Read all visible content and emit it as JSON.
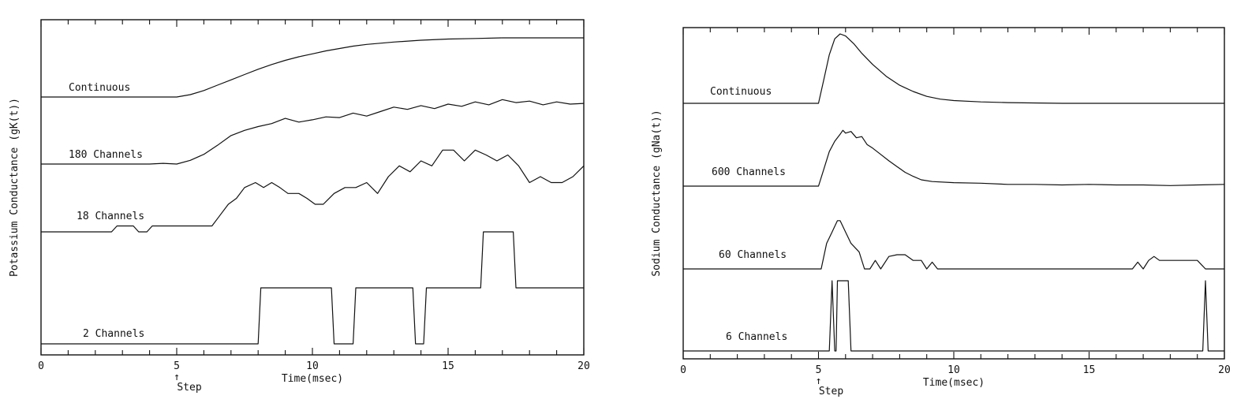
{
  "chart_data": [
    {
      "type": "line",
      "title": "",
      "xlabel": "Time(msec)",
      "ylabel": "Potassium Conductance (gK(t))",
      "xlim": [
        0,
        20
      ],
      "x_ticks": [
        "0",
        "5",
        "10",
        "15",
        "20"
      ],
      "annotation": {
        "arrow": "↑",
        "text": "Step",
        "x": 5
      },
      "traces": [
        {
          "name": "Continuous",
          "x": [
            0,
            5,
            5.5,
            6,
            6.5,
            7,
            7.5,
            8,
            8.5,
            9,
            9.5,
            10,
            10.5,
            11,
            11.5,
            12,
            12.5,
            13,
            14,
            15,
            16,
            17,
            18,
            19,
            20
          ],
          "y": [
            0.0,
            0.0,
            0.04,
            0.11,
            0.2,
            0.29,
            0.38,
            0.47,
            0.55,
            0.62,
            0.68,
            0.73,
            0.78,
            0.82,
            0.86,
            0.89,
            0.91,
            0.93,
            0.96,
            0.98,
            0.99,
            1.0,
            1.0,
            1.0,
            1.0
          ]
        },
        {
          "name": "180 Channels",
          "x": [
            0,
            4,
            4.5,
            5,
            5.5,
            6,
            6.5,
            7,
            7.5,
            8,
            8.5,
            9,
            9.5,
            10,
            10.5,
            11,
            11.5,
            12,
            12.5,
            13,
            13.5,
            14,
            14.5,
            15,
            15.5,
            16,
            16.5,
            17,
            17.5,
            18,
            18.5,
            19,
            19.5,
            20
          ],
          "y": [
            0.0,
            0.0,
            0.01,
            0.0,
            0.05,
            0.13,
            0.25,
            0.38,
            0.45,
            0.5,
            0.54,
            0.61,
            0.56,
            0.59,
            0.63,
            0.62,
            0.68,
            0.64,
            0.7,
            0.76,
            0.73,
            0.78,
            0.74,
            0.8,
            0.77,
            0.83,
            0.79,
            0.86,
            0.82,
            0.84,
            0.79,
            0.83,
            0.8,
            0.81
          ]
        },
        {
          "name": "18 Channels",
          "x": [
            0,
            2.6,
            2.8,
            3.4,
            3.6,
            3.9,
            4.1,
            6.3,
            6.6,
            6.9,
            7.2,
            7.5,
            7.9,
            8.2,
            8.5,
            8.8,
            9.1,
            9.5,
            9.8,
            10.1,
            10.4,
            10.8,
            11.2,
            11.6,
            12.0,
            12.4,
            12.8,
            13.2,
            13.6,
            14.0,
            14.4,
            14.8,
            15.2,
            15.6,
            16.0,
            16.4,
            16.8,
            17.2,
            17.6,
            18.0,
            18.4,
            18.8,
            19.2,
            19.6,
            20
          ],
          "y": [
            0.0,
            0.0,
            0.06,
            0.06,
            0.0,
            0.0,
            0.06,
            0.06,
            0.17,
            0.28,
            0.34,
            0.45,
            0.5,
            0.45,
            0.5,
            0.45,
            0.39,
            0.39,
            0.34,
            0.28,
            0.28,
            0.39,
            0.45,
            0.45,
            0.5,
            0.39,
            0.56,
            0.67,
            0.61,
            0.72,
            0.67,
            0.83,
            0.83,
            0.72,
            0.83,
            0.78,
            0.72,
            0.78,
            0.67,
            0.5,
            0.56,
            0.5,
            0.5,
            0.56,
            0.67
          ]
        },
        {
          "name": "2 Channels",
          "x": [
            0,
            8.0,
            8.1,
            10.7,
            10.8,
            11.5,
            11.6,
            13.7,
            13.8,
            14.1,
            14.2,
            16.2,
            16.3,
            17.4,
            17.5,
            20
          ],
          "y": [
            0,
            0,
            1,
            1,
            0,
            0,
            1,
            1,
            0,
            0,
            1,
            1,
            2,
            2,
            1,
            1
          ]
        }
      ]
    },
    {
      "type": "line",
      "title": "",
      "xlabel": "Time(msec)",
      "ylabel": "Sodium Conductance (gNa(t))",
      "xlim": [
        0,
        20
      ],
      "x_ticks": [
        "0",
        "5",
        "10",
        "15",
        "20"
      ],
      "annotation": {
        "arrow": "↑",
        "text": "Step",
        "x": 5
      },
      "traces": [
        {
          "name": "Continuous",
          "x": [
            0,
            5,
            5.2,
            5.4,
            5.6,
            5.8,
            6.0,
            6.3,
            6.6,
            7.0,
            7.5,
            8.0,
            8.5,
            9.0,
            9.5,
            10,
            11,
            12,
            14,
            16,
            18,
            20
          ],
          "y": [
            0.0,
            0.0,
            0.35,
            0.7,
            0.93,
            1.0,
            0.97,
            0.86,
            0.72,
            0.56,
            0.39,
            0.26,
            0.17,
            0.1,
            0.06,
            0.04,
            0.02,
            0.01,
            0.0,
            0.0,
            0.0,
            0.0
          ]
        },
        {
          "name": "600 Channels",
          "x": [
            0,
            5,
            5.2,
            5.4,
            5.6,
            5.8,
            5.9,
            6.0,
            6.2,
            6.4,
            6.6,
            6.8,
            7.0,
            7.3,
            7.6,
            7.9,
            8.2,
            8.5,
            8.8,
            9.2,
            10,
            11,
            12,
            13,
            14,
            15,
            16,
            17,
            18,
            19,
            20
          ],
          "y": [
            0.0,
            0.0,
            0.3,
            0.6,
            0.78,
            0.9,
            0.97,
            0.92,
            0.95,
            0.84,
            0.86,
            0.72,
            0.66,
            0.55,
            0.44,
            0.34,
            0.24,
            0.17,
            0.11,
            0.08,
            0.06,
            0.05,
            0.03,
            0.03,
            0.02,
            0.03,
            0.02,
            0.02,
            0.01,
            0.02,
            0.03
          ]
        },
        {
          "name": "60 Channels",
          "x": [
            0,
            5.1,
            5.3,
            5.5,
            5.7,
            5.8,
            6.0,
            6.2,
            6.5,
            6.7,
            6.9,
            7.1,
            7.3,
            7.6,
            7.9,
            8.2,
            8.5,
            8.8,
            9.0,
            9.2,
            9.4,
            16.6,
            16.8,
            17.0,
            17.2,
            17.4,
            17.6,
            19.0,
            19.3,
            20
          ],
          "y": [
            0.0,
            0.0,
            0.45,
            0.65,
            0.85,
            0.85,
            0.65,
            0.45,
            0.3,
            0.0,
            0.0,
            0.15,
            0.0,
            0.22,
            0.25,
            0.25,
            0.15,
            0.15,
            0.0,
            0.12,
            0.0,
            0.0,
            0.12,
            0.0,
            0.15,
            0.22,
            0.15,
            0.15,
            0.0,
            0.0
          ]
        },
        {
          "name": "6 Channels",
          "x": [
            0,
            5.4,
            5.5,
            5.6,
            5.65,
            5.7,
            6.1,
            6.2,
            19.2,
            19.3,
            19.4,
            20
          ],
          "y": [
            0,
            0,
            1,
            0,
            0,
            1,
            1,
            0,
            0,
            1,
            0,
            0
          ]
        }
      ]
    }
  ]
}
